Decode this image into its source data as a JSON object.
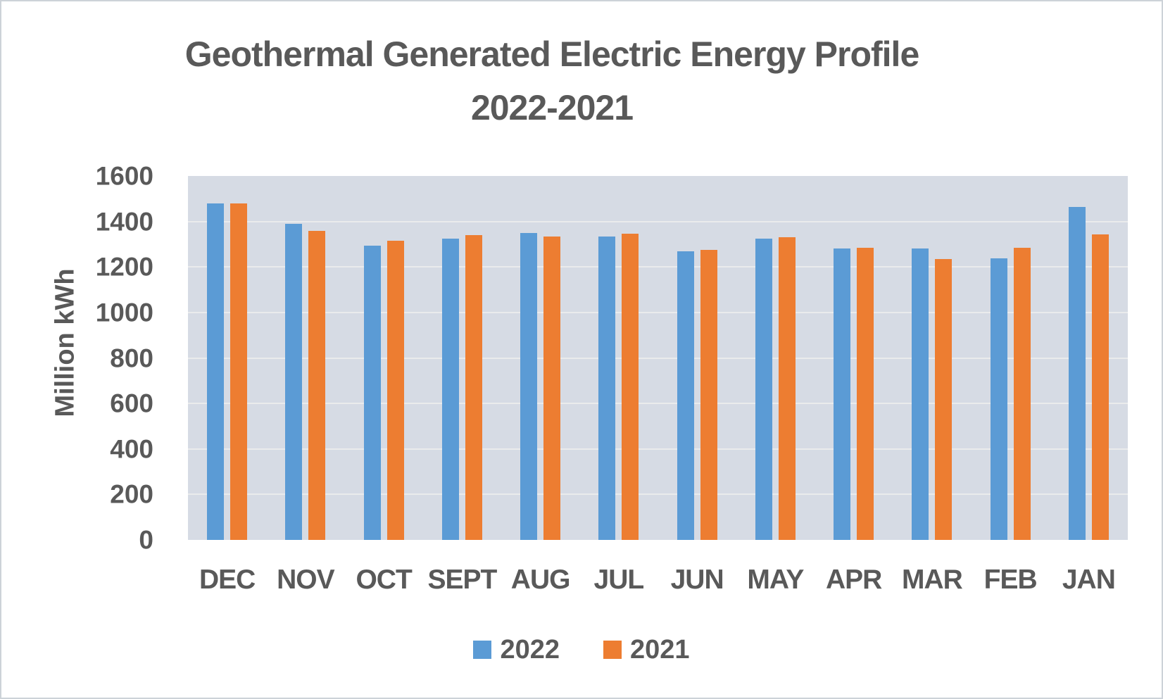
{
  "title": {
    "line1": "Geothermal Generated Electric Energy Profile",
    "line2": "2022-2021"
  },
  "chart_data": {
    "type": "bar",
    "title": "Geothermal Generated Electric Energy Profile 2022-2021",
    "categories": [
      "DEC",
      "NOV",
      "OCT",
      "SEPT",
      "AUG",
      "JUL",
      "JUN",
      "MAY",
      "APR",
      "MAR",
      "FEB",
      "JAN"
    ],
    "series": [
      {
        "name": "2022",
        "color": "#5B9BD5",
        "values": [
          1480,
          1390,
          1295,
          1325,
          1350,
          1335,
          1270,
          1325,
          1280,
          1280,
          1237,
          1465
        ]
      },
      {
        "name": "2021",
        "color": "#ED7D31",
        "values": [
          1480,
          1360,
          1315,
          1340,
          1335,
          1347,
          1275,
          1332,
          1285,
          1235,
          1283,
          1342
        ]
      }
    ],
    "xlabel": "",
    "ylabel": "Million kWh",
    "ylim": [
      0,
      1600
    ],
    "ytick_step": 200,
    "yticks": [
      "1600",
      "1400",
      "1200",
      "1000",
      "800",
      "600",
      "400",
      "200",
      "0"
    ],
    "grid": true,
    "legend_position": "bottom",
    "plot_bg_color": "#D6DBE4",
    "gridline_color": "#F6F1EC",
    "text_color": "#595959"
  }
}
